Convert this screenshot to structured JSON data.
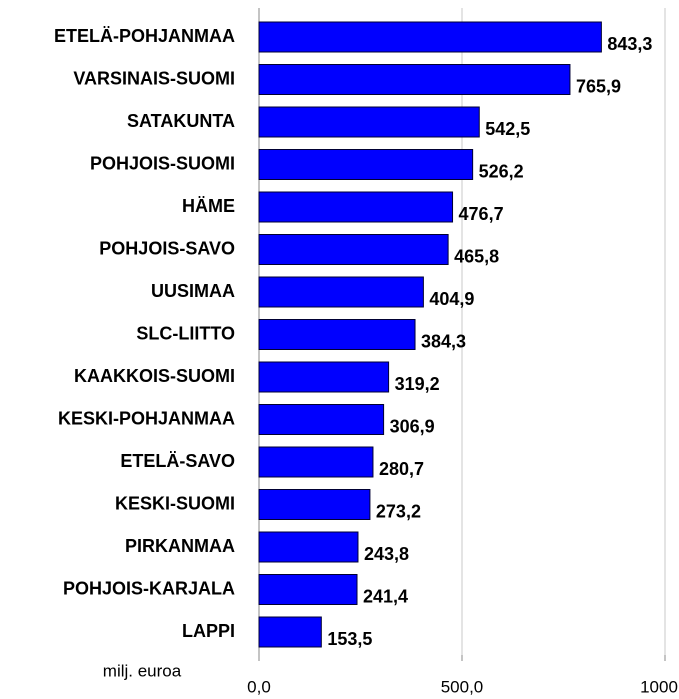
{
  "chart_data": {
    "type": "barh",
    "categories": [
      "ETELÄ-POHJANMAA",
      "VARSINAIS-SUOMI",
      "SATAKUNTA",
      "POHJOIS-SUOMI",
      "HÄME",
      "POHJOIS-SAVO",
      "UUSIMAA",
      "SLC-LIITTO",
      "KAAKKOIS-SUOMI",
      "KESKI-POHJANMAA",
      "ETELÄ-SAVO",
      "KESKI-SUOMI",
      "PIRKANMAA",
      "POHJOIS-KARJALA",
      "LAPPI"
    ],
    "values": [
      843.3,
      765.9,
      542.5,
      526.2,
      476.7,
      465.8,
      404.9,
      384.3,
      319.2,
      306.9,
      280.7,
      273.2,
      243.8,
      241.4,
      153.5
    ],
    "value_labels": [
      "843,3",
      "765,9",
      "542,5",
      "526,2",
      "476,7",
      "465,8",
      "404,9",
      "384,3",
      "319,2",
      "306,9",
      "280,7",
      "273,2",
      "243,8",
      "241,4",
      "153,5"
    ],
    "color": "#0000ff",
    "xlabel": "milj. euroa",
    "xlim": [
      0,
      1000
    ],
    "xticks": [
      {
        "value": 0,
        "label": "0,0"
      },
      {
        "value": 500,
        "label": "500,0"
      },
      1000
    ],
    "grid": true
  }
}
